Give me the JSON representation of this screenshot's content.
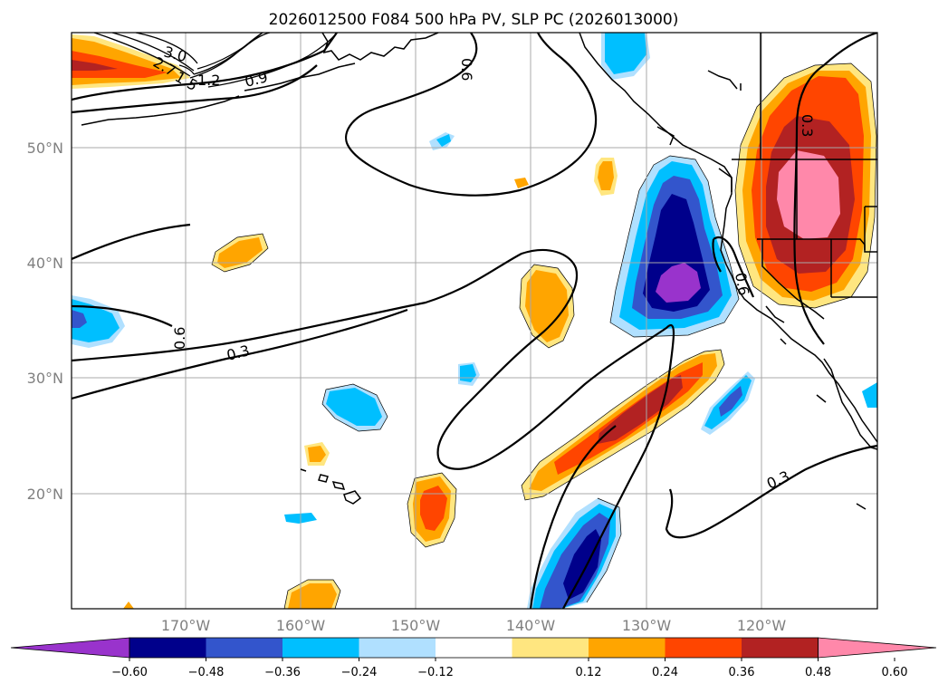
{
  "map": {
    "title": "2026012500 F084 500 hPa PV, SLP PC (2026013000)",
    "lat_labels": [
      "50°N",
      "40°N",
      "30°N",
      "20°N"
    ],
    "lon_labels": [
      "170°W",
      "160°W",
      "150°W",
      "140°W",
      "130°W",
      "120°W"
    ],
    "contour_labels": [
      "3.0",
      "2.7",
      "1.5",
      "1.2",
      "0.9",
      "0.6",
      "0.6",
      "0.3",
      "0.3",
      "0.6",
      "0.3"
    ],
    "colorbar": {
      "ticks": [
        "−0.60",
        "−0.48",
        "−0.36",
        "−0.24",
        "−0.12",
        "0.12",
        "0.24",
        "0.36",
        "0.48",
        "0.60"
      ],
      "colors": [
        "#9933cc",
        "#00008b",
        "#3355cc",
        "#00bfff",
        "#b0e0ff",
        "#ffffff",
        "#ffe680",
        "#ffa500",
        "#ff4500",
        "#b22222",
        "#ff88aa"
      ],
      "extend": "both"
    }
  }
}
